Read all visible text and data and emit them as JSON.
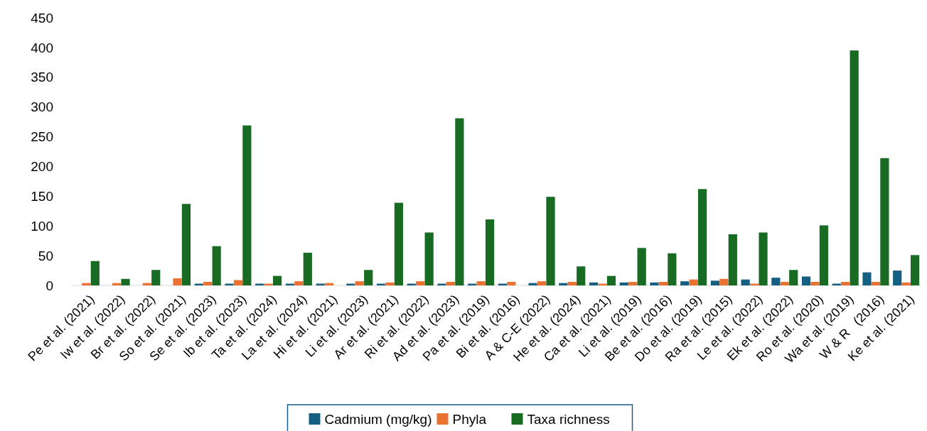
{
  "chart_data": {
    "type": "bar",
    "categories": [
      "Pe et al. (2021)",
      "Iw et al. (2022)",
      "Br et al. (2022)",
      "So et al. (2021)",
      "Se et al. (2023)",
      "Ib et al. (2023)",
      "Ta et al. (2024)",
      "La et al. (2024)",
      "Hi et al. (2021)",
      "Li et al. (2023)",
      "Ar et al. (2021)",
      "Ri et al. (2022)",
      "Ad et al. (2023)",
      "Pa et al. (2019)",
      "Bi et al. (2016)",
      "A & C-E (2022)",
      "He et al. (2024)",
      "Ca et al. (2021)",
      "Li et al. (2019)",
      "Be et al. (2016)",
      "Do et al. (2019)",
      "Ra et al. (2015)",
      "Le et al. (2022)",
      "Ek et al. (2022)",
      "Ro et al. (2020)",
      "Wa et al. (2019)",
      "W & R   (2016)",
      "Ke et al. (2021)"
    ],
    "series": [
      {
        "name": "Cadmium (mg/kg)",
        "color": "#156082",
        "values": [
          null,
          null,
          null,
          null,
          3,
          3,
          3,
          3,
          3,
          3,
          3,
          3,
          3,
          3,
          3,
          4,
          4,
          5,
          5,
          5,
          7,
          8,
          10,
          13,
          15,
          3,
          22,
          25
        ]
      },
      {
        "name": "Phyla",
        "color": "#e97132",
        "values": [
          4,
          4,
          4,
          12,
          6,
          9,
          3,
          7,
          4,
          7,
          5,
          7,
          6,
          7,
          6,
          7,
          6,
          3,
          6,
          6,
          10,
          11,
          3,
          6,
          6,
          6,
          6,
          5
        ]
      },
      {
        "name": "Taxa richness",
        "color": "#196b24",
        "values": [
          41,
          11,
          26,
          137,
          66,
          269,
          16,
          55,
          null,
          26,
          139,
          89,
          281,
          111,
          null,
          149,
          32,
          16,
          63,
          54,
          162,
          86,
          89,
          26,
          101,
          395,
          214,
          51
        ]
      }
    ],
    "ylim": [
      0,
      450
    ],
    "yticks": [
      0,
      50,
      100,
      150,
      200,
      250,
      300,
      350,
      400,
      450
    ],
    "grid": false,
    "legend": "bottom"
  }
}
